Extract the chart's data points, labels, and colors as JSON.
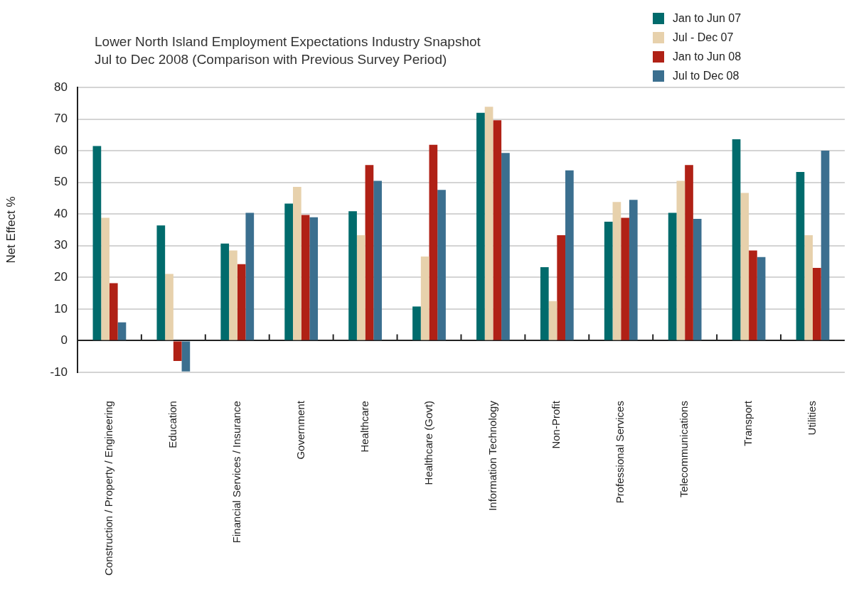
{
  "chart_data": {
    "type": "bar",
    "title": "Lower North Island Employment Expectations Industry Snapshot\nJul to Dec 2008 (Comparison with Previous Survey Period)",
    "ylabel": "Net Effect %",
    "categories": [
      "Construction / Property / Engineering",
      "Education",
      "Financial Services / Insurance",
      "Government",
      "Healthcare",
      "Healthcare (Govt)",
      "Information Technology",
      "Non-Profit",
      "Professional Services",
      "Telecommunications",
      "Transport",
      "Utilities"
    ],
    "series": [
      {
        "name": "Jan to Jun 07",
        "color": "#016b6c",
        "values": [
          61.5,
          36.4,
          30.7,
          43.3,
          40.9,
          10.8,
          72.0,
          23.2,
          37.6,
          40.4,
          63.6,
          53.3
        ]
      },
      {
        "name": "Jul - Dec 07",
        "color": "#e7d1ac",
        "values": [
          38.8,
          21.1,
          28.5,
          48.6,
          33.3,
          26.6,
          73.9,
          12.5,
          43.8,
          50.5,
          46.7,
          33.3
        ]
      },
      {
        "name": "Jan to Jun 08",
        "color": "#b02116",
        "values": [
          18.2,
          -6.4,
          24.2,
          39.7,
          55.5,
          61.9,
          69.6,
          33.3,
          38.8,
          55.5,
          28.5,
          23.0
        ]
      },
      {
        "name": "Jul to Dec 08",
        "color": "#3b6f8f",
        "values": [
          5.8,
          -9.7,
          40.4,
          39.0,
          50.5,
          47.6,
          59.3,
          53.8,
          44.5,
          38.5,
          26.4,
          60.0
        ]
      }
    ],
    "ylim": [
      -10,
      80
    ],
    "yticks": [
      -10,
      0,
      10,
      20,
      30,
      40,
      50,
      60,
      70,
      80
    ],
    "grid": "y",
    "legend": "top right"
  }
}
